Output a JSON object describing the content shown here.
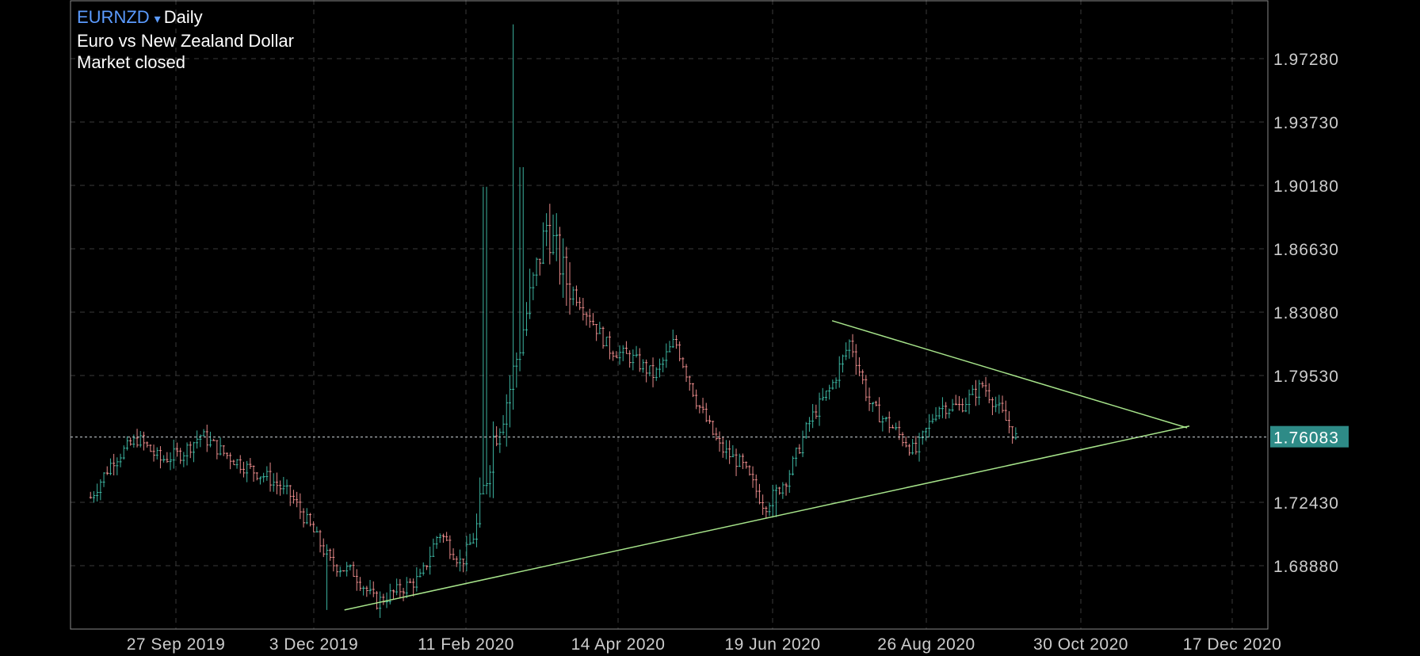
{
  "header": {
    "symbol": "EURNZD",
    "caret": "▾",
    "period": "Daily",
    "description": "Euro vs New Zealand Dollar",
    "status": "Market closed"
  },
  "price_axis": {
    "labels": [
      "1.97280",
      "1.93730",
      "1.90180",
      "1.86630",
      "1.83080",
      "1.79530",
      "1.76083",
      "1.72430",
      "1.68880"
    ],
    "current_price": "1.76083",
    "current_color": "#2e8b87"
  },
  "time_axis": {
    "labels": [
      "27 Sep 2019",
      "3 Dec 2019",
      "11 Feb 2020",
      "14 Apr 2020",
      "19 Jun 2020",
      "26 Aug 2020",
      "30 Oct 2020",
      "17 Dec 2020"
    ]
  },
  "colors": {
    "up": "#3cb4a0",
    "down": "#e88a8a",
    "grid": "#3a3a3a",
    "trendline": "#a6e38a",
    "axis": "#cccccc"
  },
  "chart_data": {
    "type": "candlestick",
    "symbol": "EURNZD",
    "timeframe": "Daily",
    "ylim": [
      1.655,
      2.0
    ],
    "y_ticks": [
      1.6888,
      1.7243,
      1.7608,
      1.7953,
      1.8308,
      1.8663,
      1.9018,
      1.9373,
      1.9728
    ],
    "x_ticks": [
      "27 Sep 2019",
      "3 Dec 2019",
      "11 Feb 2020",
      "14 Apr 2020",
      "19 Jun 2020",
      "26 Aug 2020",
      "30 Oct 2020",
      "17 Dec 2020"
    ],
    "current_price": 1.76083,
    "close_path": [
      [
        "2019-08-20",
        1.727
      ],
      [
        "2019-08-30",
        1.748
      ],
      [
        "2019-09-10",
        1.76
      ],
      [
        "2019-09-20",
        1.748
      ],
      [
        "2019-09-30",
        1.752
      ],
      [
        "2019-10-08",
        1.762
      ],
      [
        "2019-10-18",
        1.752
      ],
      [
        "2019-10-28",
        1.744
      ],
      [
        "2019-11-07",
        1.738
      ],
      [
        "2019-11-17",
        1.728
      ],
      [
        "2019-11-27",
        1.708
      ],
      [
        "2019-12-05",
        1.69
      ],
      [
        "2019-12-15",
        1.685
      ],
      [
        "2019-12-25",
        1.668
      ],
      [
        "2020-01-04",
        1.675
      ],
      [
        "2020-01-14",
        1.682
      ],
      [
        "2020-01-22",
        1.708
      ],
      [
        "2020-02-01",
        1.69
      ],
      [
        "2020-02-08",
        1.71
      ],
      [
        "2020-02-15",
        1.76
      ],
      [
        "2020-02-22",
        1.785
      ],
      [
        "2020-03-01",
        1.83
      ],
      [
        "2020-03-10",
        1.88
      ],
      [
        "2020-03-18",
        1.85
      ],
      [
        "2020-03-28",
        1.83
      ],
      [
        "2020-04-07",
        1.81
      ],
      [
        "2020-04-17",
        1.805
      ],
      [
        "2020-04-27",
        1.795
      ],
      [
        "2020-05-06",
        1.815
      ],
      [
        "2020-05-16",
        1.78
      ],
      [
        "2020-05-26",
        1.755
      ],
      [
        "2020-06-05",
        1.745
      ],
      [
        "2020-06-15",
        1.722
      ],
      [
        "2020-06-25",
        1.738
      ],
      [
        "2020-07-05",
        1.77
      ],
      [
        "2020-07-15",
        1.79
      ],
      [
        "2020-07-23",
        1.815
      ],
      [
        "2020-08-01",
        1.778
      ],
      [
        "2020-08-11",
        1.766
      ],
      [
        "2020-08-21",
        1.752
      ],
      [
        "2020-08-31",
        1.778
      ],
      [
        "2020-09-10",
        1.778
      ],
      [
        "2020-09-20",
        1.79
      ],
      [
        "2020-09-28",
        1.775
      ],
      [
        "2020-10-05",
        1.76
      ]
    ],
    "trendlines": [
      {
        "from": [
          "2019-12-11",
          1.664
        ],
        "to": [
          "2020-12-21",
          1.767
        ]
      },
      {
        "from": [
          "2020-07-15",
          1.826
        ],
        "to": [
          "2020-12-20",
          1.766
        ]
      }
    ]
  }
}
